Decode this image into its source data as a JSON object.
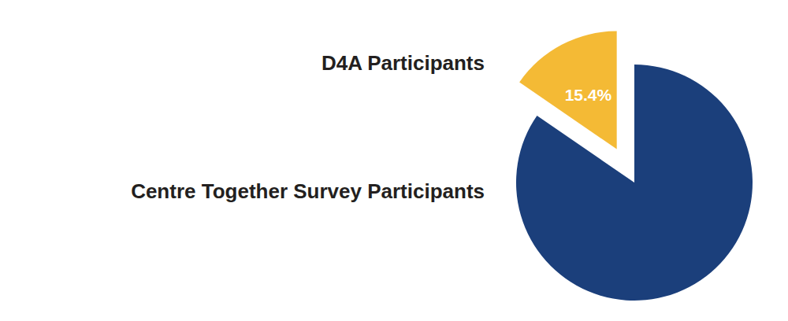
{
  "chart_data": {
    "type": "pie",
    "categories": [
      "D4A Participants",
      "Centre Together Survey Participants"
    ],
    "values": [
      15.4,
      84.6
    ],
    "value_labels": [
      "15.4%",
      null
    ],
    "colors": [
      "#f4ba35",
      "#1b3f7b"
    ],
    "data_labels": true
  }
}
